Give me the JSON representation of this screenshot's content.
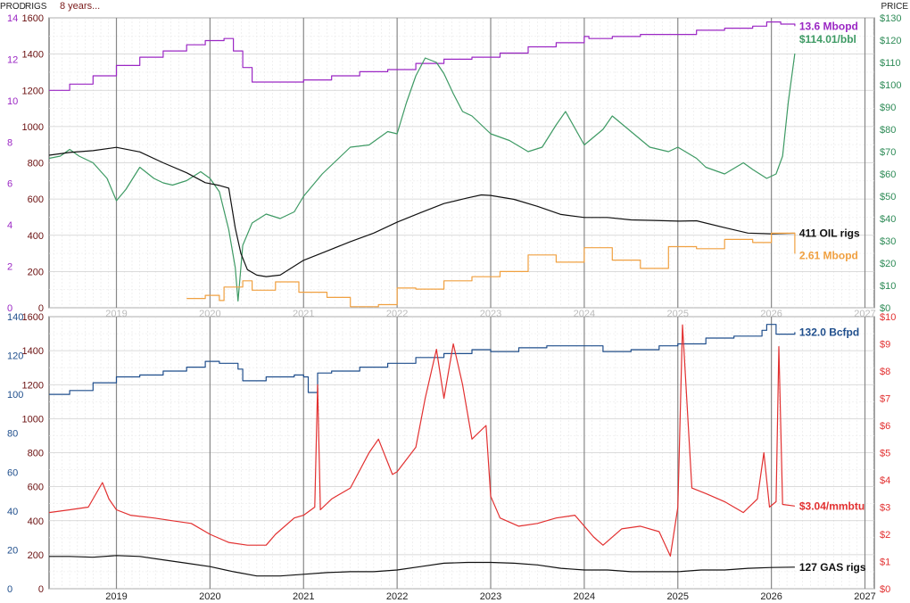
{
  "header": {
    "prod_label": "PROD",
    "rigs_label": "RIGS",
    "period_label": "8 years...",
    "price_label": "PRICE"
  },
  "colors": {
    "oil_prod": "#9b27c4",
    "oil_price": "#3e9a64",
    "oil_rigs": "#111111",
    "mini_prod": "#f0a040",
    "gas_prod": "#1f4e8c",
    "gas_price": "#e23030",
    "gas_rigs": "#111111",
    "grid": "#cfcfcf",
    "year_line": "#888888",
    "rig_axis_top": "#6a1010",
    "prod_axis_top": "#9b27c4",
    "price_axis_top": "#2e8b57",
    "prod_axis_bottom": "#1f4e8c",
    "rig_axis_bottom": "#6a1010",
    "price_axis_bottom": "#e23030"
  },
  "chart_data": [
    {
      "type": "line",
      "panel": "oil",
      "x_ticks": [
        "2019",
        "2020",
        "2021",
        "2022",
        "2023",
        "2024",
        "2025",
        "2026",
        "2027"
      ],
      "x_range": [
        2018.28,
        2027.1
      ],
      "grid": true,
      "axes": {
        "prod": {
          "range": [
            0,
            14
          ],
          "ticks": [
            "0",
            "2",
            "4",
            "6",
            "8",
            "10",
            "12",
            "14"
          ]
        },
        "rigs": {
          "range": [
            0,
            1600
          ],
          "ticks": [
            "0",
            "200",
            "400",
            "600",
            "800",
            "1000",
            "1200",
            "1400",
            "1600"
          ]
        },
        "price": {
          "range": [
            0,
            130
          ],
          "ticks": [
            "$0",
            "$10",
            "$20",
            "$30",
            "$40",
            "$50",
            "$60",
            "$70",
            "$80",
            "$90",
            "$100",
            "$110",
            "$120",
            "$130"
          ]
        }
      },
      "series": [
        {
          "key": "production",
          "axis": "prod",
          "shape": "step",
          "end_label": "13.6 Mbopd",
          "x": [
            2018.28,
            2018.5,
            2018.75,
            2019.0,
            2019.25,
            2019.5,
            2019.75,
            2019.95,
            2020.15,
            2020.25,
            2020.35,
            2020.45,
            2020.7,
            2021.0,
            2021.3,
            2021.6,
            2021.9,
            2022.2,
            2022.5,
            2022.8,
            2023.1,
            2023.4,
            2023.7,
            2024.0,
            2024.05,
            2024.3,
            2024.6,
            2024.9,
            2025.2,
            2025.5,
            2025.8,
            2025.95,
            2026.1,
            2026.25
          ],
          "y": [
            10.5,
            10.8,
            11.2,
            11.7,
            12.1,
            12.4,
            12.7,
            12.9,
            13.0,
            12.4,
            11.6,
            10.9,
            10.9,
            11.0,
            11.2,
            11.4,
            11.5,
            11.8,
            12.0,
            12.1,
            12.3,
            12.6,
            12.8,
            13.1,
            13.0,
            13.1,
            13.2,
            13.2,
            13.4,
            13.5,
            13.6,
            13.8,
            13.7,
            13.6
          ]
        },
        {
          "key": "price",
          "axis": "price",
          "end_label": "$114.01/bbl",
          "x": [
            2018.28,
            2018.4,
            2018.5,
            2018.6,
            2018.75,
            2018.9,
            2019.0,
            2019.1,
            2019.25,
            2019.4,
            2019.5,
            2019.6,
            2019.75,
            2019.9,
            2020.0,
            2020.1,
            2020.2,
            2020.27,
            2020.3,
            2020.35,
            2020.45,
            2020.6,
            2020.75,
            2020.9,
            2021.0,
            2021.2,
            2021.4,
            2021.5,
            2021.7,
            2021.9,
            2022.0,
            2022.1,
            2022.2,
            2022.3,
            2022.42,
            2022.5,
            2022.6,
            2022.7,
            2022.8,
            2022.9,
            2023.0,
            2023.2,
            2023.4,
            2023.55,
            2023.7,
            2023.8,
            2024.0,
            2024.2,
            2024.3,
            2024.5,
            2024.7,
            2024.9,
            2025.0,
            2025.2,
            2025.3,
            2025.5,
            2025.7,
            2025.8,
            2025.95,
            2026.05,
            2026.12,
            2026.18,
            2026.25
          ],
          "y": [
            67,
            68,
            71,
            68,
            65,
            58,
            48,
            53,
            63,
            58,
            56,
            55,
            57,
            61,
            58,
            52,
            35,
            18,
            3,
            28,
            38,
            42,
            40,
            43,
            50,
            60,
            68,
            72,
            73,
            79,
            78,
            92,
            104,
            112,
            110,
            105,
            96,
            88,
            86,
            82,
            78,
            75,
            70,
            72,
            82,
            88,
            73,
            80,
            86,
            79,
            72,
            70,
            72,
            67,
            63,
            60,
            65,
            62,
            58,
            60,
            68,
            92,
            114
          ]
        },
        {
          "key": "oil_rigs",
          "axis": "rigs",
          "end_label": "411 OIL rigs",
          "x": [
            2018.28,
            2018.5,
            2018.75,
            2019.0,
            2019.25,
            2019.5,
            2019.75,
            2019.95,
            2020.1,
            2020.2,
            2020.27,
            2020.33,
            2020.4,
            2020.5,
            2020.6,
            2020.75,
            2021.0,
            2021.25,
            2021.5,
            2021.75,
            2022.0,
            2022.25,
            2022.5,
            2022.75,
            2022.9,
            2023.0,
            2023.25,
            2023.5,
            2023.75,
            2024.0,
            2024.25,
            2024.5,
            2024.75,
            2025.0,
            2025.2,
            2025.5,
            2025.75,
            2026.0,
            2026.25
          ],
          "y": [
            842,
            857,
            867,
            885,
            860,
            800,
            745,
            690,
            675,
            660,
            440,
            300,
            210,
            180,
            172,
            180,
            262,
            313,
            365,
            412,
            472,
            525,
            575,
            606,
            623,
            620,
            598,
            560,
            515,
            498,
            498,
            485,
            482,
            478,
            480,
            442,
            412,
            408,
            411
          ]
        },
        {
          "key": "mini_production",
          "axis": "prod",
          "shape": "step",
          "end_label": "2.61 Mbopd",
          "x": [
            2019.75,
            2019.95,
            2020.1,
            2020.15,
            2020.35,
            2020.45,
            2020.7,
            2020.95,
            2021.25,
            2021.5,
            2021.8,
            2022.0,
            2022.2,
            2022.5,
            2022.8,
            2023.1,
            2023.4,
            2023.7,
            2024.0,
            2024.3,
            2024.6,
            2024.9,
            2025.2,
            2025.5,
            2025.8,
            2025.9,
            2026.0,
            2026.25
          ],
          "y": [
            0.45,
            0.6,
            0.35,
            1.0,
            1.3,
            0.85,
            1.25,
            0.75,
            0.5,
            0.05,
            0.15,
            0.95,
            0.9,
            1.3,
            1.5,
            1.75,
            2.55,
            2.2,
            2.9,
            2.3,
            1.9,
            2.95,
            2.85,
            3.3,
            3.15,
            3.15,
            3.6,
            2.61
          ]
        }
      ]
    },
    {
      "type": "line",
      "panel": "gas",
      "x_ticks": [
        "2019",
        "2020",
        "2021",
        "2022",
        "2023",
        "2024",
        "2025",
        "2026",
        "2027"
      ],
      "x_range": [
        2018.28,
        2027.1
      ],
      "grid": true,
      "axes": {
        "prod": {
          "range": [
            0,
            140
          ],
          "ticks": [
            "0",
            "20",
            "40",
            "60",
            "80",
            "100",
            "120",
            "140"
          ]
        },
        "rigs": {
          "range": [
            0,
            1600
          ],
          "ticks": [
            "0",
            "200",
            "400",
            "600",
            "800",
            "1000",
            "1200",
            "1400",
            "1600"
          ]
        },
        "price": {
          "range": [
            0,
            10
          ],
          "ticks": [
            "$0",
            "$1",
            "$2",
            "$3",
            "$4",
            "$5",
            "$6",
            "$7",
            "$8",
            "$9",
            "$10"
          ]
        }
      },
      "series": [
        {
          "key": "production",
          "axis": "prod",
          "shape": "step",
          "end_label": "132.0 Bcfpd",
          "x": [
            2018.28,
            2018.5,
            2018.75,
            2019.0,
            2019.25,
            2019.5,
            2019.75,
            2019.95,
            2020.1,
            2020.3,
            2020.35,
            2020.6,
            2020.9,
            2021.0,
            2021.05,
            2021.15,
            2021.3,
            2021.6,
            2021.9,
            2022.2,
            2022.5,
            2022.8,
            2023.0,
            2023.3,
            2023.6,
            2023.9,
            2024.2,
            2024.5,
            2024.8,
            2025.0,
            2025.3,
            2025.6,
            2025.9,
            2025.95,
            2026.05,
            2026.25
          ],
          "y": [
            100,
            102,
            106,
            109,
            110,
            112,
            114,
            117,
            116,
            113,
            107,
            109,
            110,
            109,
            101,
            111,
            112,
            114,
            116,
            119,
            121,
            123,
            122,
            124,
            125,
            125,
            122,
            123,
            125,
            126,
            129,
            130,
            133,
            136,
            131,
            132
          ]
        },
        {
          "key": "price",
          "axis": "price",
          "end_label": "$3.04/mmbtu",
          "x": [
            2018.28,
            2018.5,
            2018.7,
            2018.85,
            2018.92,
            2019.0,
            2019.15,
            2019.4,
            2019.6,
            2019.8,
            2020.0,
            2020.2,
            2020.4,
            2020.6,
            2020.7,
            2020.9,
            2021.0,
            2021.12,
            2021.15,
            2021.18,
            2021.3,
            2021.5,
            2021.7,
            2021.8,
            2021.95,
            2022.0,
            2022.2,
            2022.3,
            2022.42,
            2022.5,
            2022.6,
            2022.7,
            2022.8,
            2022.95,
            2023.0,
            2023.1,
            2023.3,
            2023.5,
            2023.7,
            2023.9,
            2024.1,
            2024.2,
            2024.4,
            2024.6,
            2024.8,
            2024.92,
            2025.0,
            2025.05,
            2025.15,
            2025.3,
            2025.5,
            2025.7,
            2025.85,
            2025.92,
            2025.98,
            2026.05,
            2026.08,
            2026.12,
            2026.25
          ],
          "y": [
            2.8,
            2.9,
            3.0,
            3.9,
            3.3,
            2.9,
            2.7,
            2.6,
            2.5,
            2.4,
            2.0,
            1.7,
            1.6,
            1.6,
            2.0,
            2.6,
            2.7,
            3.0,
            7.5,
            2.9,
            3.3,
            3.7,
            5.0,
            5.5,
            4.2,
            4.3,
            5.2,
            7.0,
            8.8,
            7.0,
            9.0,
            7.5,
            5.5,
            6.0,
            3.4,
            2.6,
            2.3,
            2.4,
            2.6,
            2.7,
            1.9,
            1.6,
            2.2,
            2.3,
            2.1,
            1.2,
            3.0,
            9.7,
            3.7,
            3.5,
            3.2,
            2.8,
            3.3,
            5.0,
            3.0,
            3.2,
            8.9,
            3.1,
            3.04
          ]
        },
        {
          "key": "gas_rigs",
          "axis": "rigs",
          "end_label": "127 GAS rigs",
          "x": [
            2018.28,
            2018.5,
            2018.75,
            2019.0,
            2019.25,
            2019.5,
            2019.75,
            2020.0,
            2020.25,
            2020.5,
            2020.75,
            2021.0,
            2021.25,
            2021.5,
            2021.75,
            2022.0,
            2022.25,
            2022.5,
            2022.75,
            2023.0,
            2023.25,
            2023.5,
            2023.75,
            2024.0,
            2024.25,
            2024.5,
            2024.75,
            2025.0,
            2025.25,
            2025.5,
            2025.75,
            2026.0,
            2026.25
          ],
          "y": [
            190,
            190,
            185,
            195,
            190,
            170,
            150,
            130,
            100,
            75,
            75,
            85,
            95,
            100,
            100,
            110,
            130,
            150,
            155,
            155,
            150,
            140,
            120,
            110,
            110,
            100,
            100,
            100,
            110,
            110,
            120,
            125,
            127
          ]
        }
      ]
    }
  ]
}
